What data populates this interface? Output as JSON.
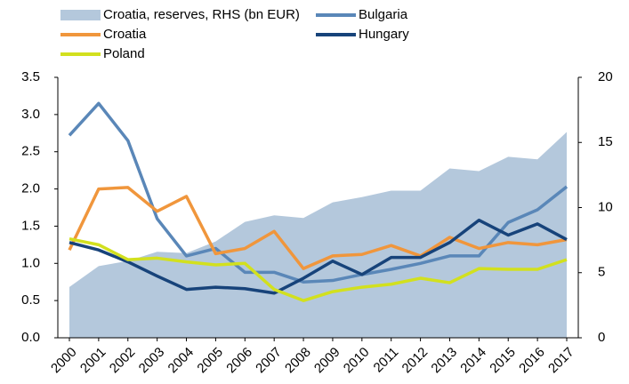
{
  "chart_data": {
    "type": "line",
    "categories": [
      "2000",
      "2001",
      "2002",
      "2003",
      "2004",
      "2005",
      "2006",
      "2007",
      "2008",
      "2009",
      "2010",
      "2011",
      "2012",
      "2013",
      "2014",
      "2015",
      "2016",
      "2017"
    ],
    "series": [
      {
        "name": "Croatia, reserves, RHS (bn EUR)",
        "type": "area",
        "axis": "y2",
        "color": "#b4c8dc",
        "values": [
          3.9,
          5.5,
          5.9,
          6.6,
          6.5,
          7.4,
          8.9,
          9.4,
          9.2,
          10.4,
          10.8,
          11.3,
          11.3,
          13.0,
          12.8,
          13.9,
          13.7,
          15.8
        ]
      },
      {
        "name": "Bulgaria",
        "color": "#5a87b8",
        "values": [
          2.72,
          3.15,
          2.65,
          1.6,
          1.1,
          1.2,
          0.88,
          0.88,
          0.75,
          0.77,
          0.85,
          0.92,
          1.0,
          1.1,
          1.1,
          1.55,
          1.72,
          2.03
        ]
      },
      {
        "name": "Croatia",
        "color": "#f0963c",
        "values": [
          1.18,
          2.0,
          2.02,
          1.7,
          1.9,
          1.13,
          1.2,
          1.43,
          0.93,
          1.1,
          1.12,
          1.24,
          1.1,
          1.35,
          1.2,
          1.28,
          1.25,
          1.32
        ]
      },
      {
        "name": "Hungary",
        "color": "#17437a",
        "values": [
          1.28,
          1.18,
          1.02,
          0.83,
          0.65,
          0.68,
          0.66,
          0.6,
          0.8,
          1.03,
          0.85,
          1.08,
          1.08,
          1.28,
          1.58,
          1.38,
          1.53,
          1.32
        ]
      },
      {
        "name": "Poland",
        "color": "#d2e01e",
        "values": [
          1.33,
          1.25,
          1.05,
          1.07,
          1.02,
          0.98,
          1.0,
          0.65,
          0.5,
          0.62,
          0.68,
          0.72,
          0.8,
          0.74,
          0.93,
          0.92,
          0.92,
          1.05
        ]
      }
    ],
    "ylim": [
      0,
      3.5
    ],
    "yticks": [
      {
        "value": 0,
        "label": "0.0"
      },
      0.5,
      {
        "value": 1,
        "label": "1.0"
      },
      1.5,
      {
        "value": 2,
        "label": "2.0"
      },
      2.5,
      {
        "value": 3,
        "label": "3.0"
      },
      3.5
    ],
    "y2lim": [
      0,
      20
    ],
    "y2ticks": [
      0,
      5,
      10,
      15,
      20
    ],
    "grid": false,
    "legend": "top"
  }
}
